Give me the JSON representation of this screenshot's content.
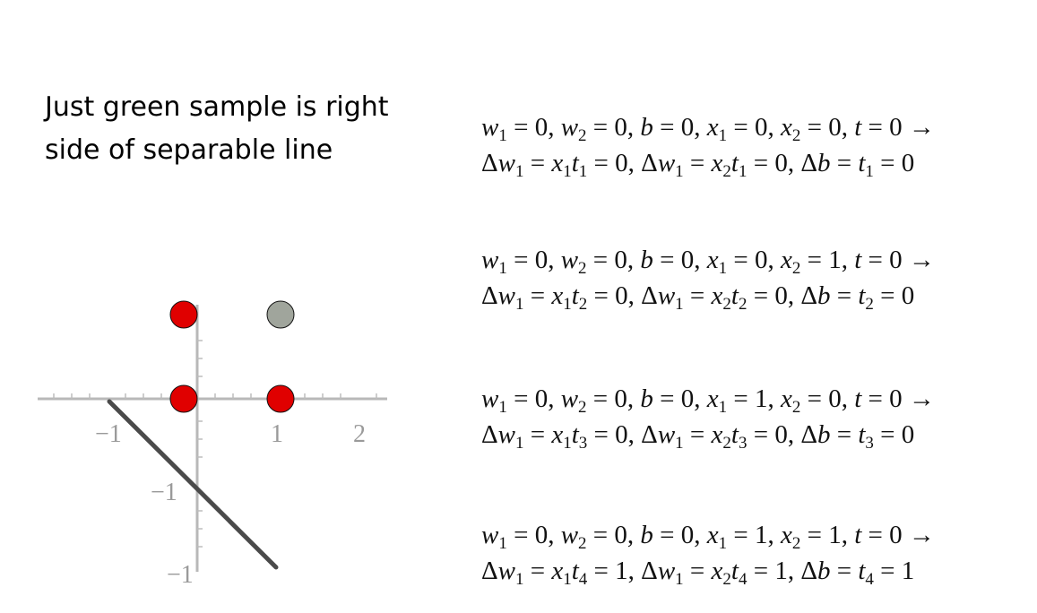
{
  "heading": {
    "line1": "Just green sample is right",
    "line2": "side of separable line"
  },
  "plot": {
    "x_ticks": [
      "−1",
      "1",
      "2"
    ],
    "y_ticks": [
      "−1",
      "−1"
    ],
    "points": [
      {
        "label": "(0,1)",
        "color": "#e00000"
      },
      {
        "label": "(1,1)",
        "color": "#a0a59c"
      },
      {
        "label": "(0,0)",
        "color": "#e00000"
      },
      {
        "label": "(1,0)",
        "color": "#e00000"
      }
    ],
    "line_color": "#4a4a4a",
    "axis_color": "#b8b8b8"
  },
  "steps": [
    {
      "w1": "0",
      "w2": "0",
      "b": "0",
      "x1": "0",
      "x2": "0",
      "t": "0",
      "idx": "1",
      "idx2": "1",
      "dw1": "0",
      "dw2": "0",
      "db": "0"
    },
    {
      "w1": "0",
      "w2": "0",
      "b": "0",
      "x1": "0",
      "x2": "1",
      "t": "0",
      "idx": "2",
      "idx2": "2",
      "dw1": "0",
      "dw2": "0",
      "db": "0"
    },
    {
      "w1": "0",
      "w2": "0",
      "b": "0",
      "x1": "1",
      "x2": "0",
      "t": "0",
      "idx": "3",
      "idx2": "3",
      "dw1": "0",
      "dw2": "0",
      "db": "0"
    },
    {
      "w1": "0",
      "w2": "0",
      "b": "0",
      "x1": "1",
      "x2": "1",
      "t": "0",
      "idx": "4",
      "idx2": "4",
      "dw1": "1",
      "dw2": "1",
      "db": "1"
    }
  ]
}
